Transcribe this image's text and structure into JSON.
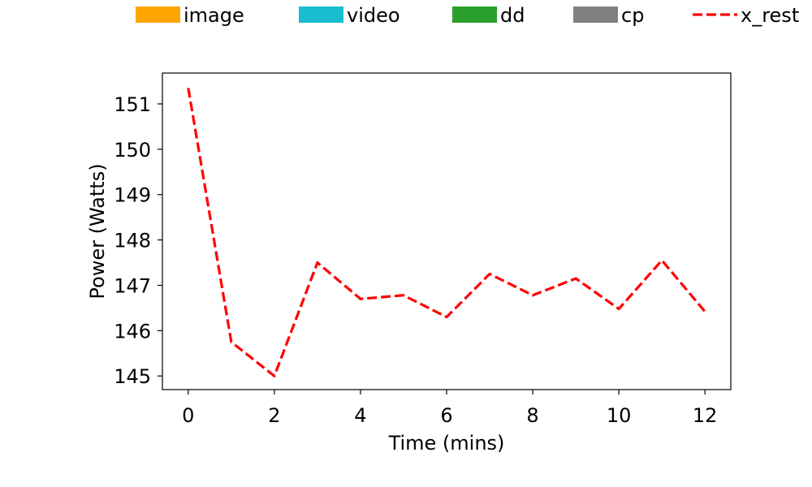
{
  "chart_data": {
    "type": "line",
    "title": "",
    "xlabel": "Time (mins)",
    "ylabel": "Power (Watts)",
    "xlim": [
      -0.6,
      12.6
    ],
    "ylim": [
      144.7,
      151.68
    ],
    "x_ticks": [
      0,
      2,
      4,
      6,
      8,
      10,
      12
    ],
    "y_ticks": [
      145,
      146,
      147,
      148,
      149,
      150,
      151
    ],
    "grid": false,
    "legend_placement": "top",
    "legend": [
      {
        "label": "image",
        "style": "patch",
        "color": "#ffa500"
      },
      {
        "label": "video",
        "style": "patch",
        "color": "#17becf"
      },
      {
        "label": "dd",
        "style": "patch",
        "color": "#2ca02c"
      },
      {
        "label": "cp",
        "style": "patch",
        "color": "#808080"
      },
      {
        "label": "x_rest",
        "style": "dashed-line",
        "color": "#ff0000"
      }
    ],
    "series": [
      {
        "name": "x_rest",
        "color": "#ff0000",
        "line_style": "dashed",
        "x": [
          0,
          1,
          2,
          3,
          4,
          5,
          6,
          7,
          8,
          9,
          10,
          11,
          12
        ],
        "y": [
          151.35,
          145.75,
          145.0,
          147.5,
          146.7,
          146.78,
          146.3,
          147.25,
          146.78,
          147.15,
          146.48,
          147.55,
          146.42
        ]
      }
    ]
  }
}
